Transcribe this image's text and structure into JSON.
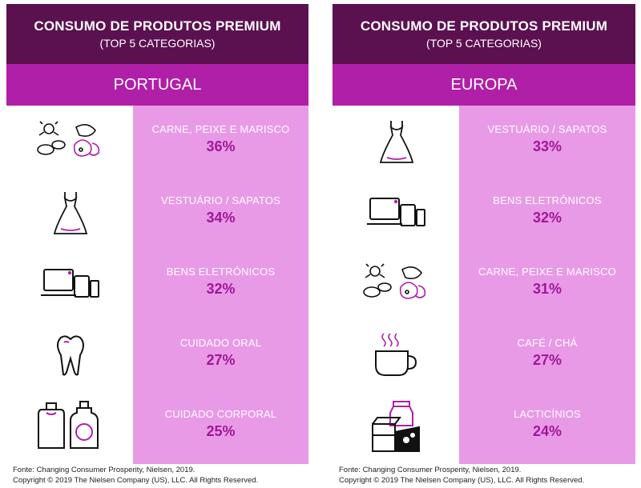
{
  "left": {
    "title": "CONSUMO DE PRODUTOS PREMIUM",
    "subtitle": "(TOP 5 CATEGORIAS)",
    "region": "PORTUGAL",
    "items": [
      {
        "label": "CARNE, PEIXE E MARISCO",
        "value": "36%",
        "icon": "food-icon"
      },
      {
        "label": "VESTUÁRIO / SAPATOS",
        "value": "34%",
        "icon": "dress-icon"
      },
      {
        "label": "BENS ELETRÓNICOS",
        "value": "32%",
        "icon": "electronics-icon"
      },
      {
        "label": "CUIDADO ORAL",
        "value": "27%",
        "icon": "tooth-icon"
      },
      {
        "label": "CUIDADO CORPORAL",
        "value": "25%",
        "icon": "bottles-icon"
      }
    ],
    "source": "Fonte: Changing Consumer Prosperity, Nielsen, 2019.",
    "copyright": "Copyright © 2019 The Nielsen Company (US), LLC. All Rights Reserved."
  },
  "right": {
    "title": "CONSUMO DE PRODUTOS PREMIUM",
    "subtitle": "(TOP 5 CATEGORIAS)",
    "region": "EUROPA",
    "items": [
      {
        "label": "VESTUÁRIO / SAPATOS",
        "value": "33%",
        "icon": "dress-icon"
      },
      {
        "label": "BENS ELETRÓNICOS",
        "value": "32%",
        "icon": "electronics-icon"
      },
      {
        "label": "CARNE, PEIXE E MARISCO",
        "value": "31%",
        "icon": "food-icon"
      },
      {
        "label": "CAFÉ / CHÁ",
        "value": "27%",
        "icon": "coffee-icon"
      },
      {
        "label": "LACTICÍNIOS",
        "value": "24%",
        "icon": "dairy-icon"
      }
    ],
    "source": "Fonte: Changing Consumer Prosperity, Nielsen, 2019.",
    "copyright": "Copyright © 2019 The Nielsen Company (US), LLC. All Rights Reserved."
  },
  "colors": {
    "header_dark": "#5b1150",
    "region_bar": "#b01fa8",
    "value_panel": "#e99ae6",
    "value_text": "#a0179a"
  },
  "chart_data": [
    {
      "type": "table",
      "title": "CONSUMO DE PRODUTOS PREMIUM",
      "subtitle": "(TOP 5 CATEGORIAS)",
      "region": "PORTUGAL",
      "categories": [
        "CARNE, PEIXE E MARISCO",
        "VESTUÁRIO / SAPATOS",
        "BENS ELETRÓNICOS",
        "CUIDADO ORAL",
        "CUIDADO CORPORAL"
      ],
      "values": [
        36,
        34,
        32,
        27,
        25
      ]
    },
    {
      "type": "table",
      "title": "CONSUMO DE PRODUTOS PREMIUM",
      "subtitle": "(TOP 5 CATEGORIAS)",
      "region": "EUROPA",
      "categories": [
        "VESTUÁRIO / SAPATOS",
        "BENS ELETRÓNICOS",
        "CARNE, PEIXE E MARISCO",
        "CAFÉ / CHÁ",
        "LACTICÍNIOS"
      ],
      "values": [
        33,
        32,
        31,
        27,
        24
      ]
    }
  ]
}
